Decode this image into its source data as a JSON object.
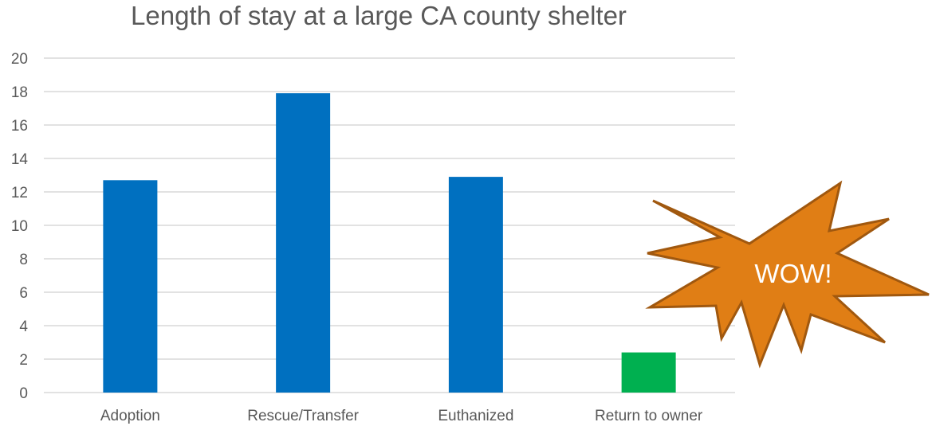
{
  "chart_data": {
    "type": "bar",
    "title": "Length of stay at a large CA county shelter",
    "xlabel": "",
    "ylabel": "",
    "categories": [
      "Adoption",
      "Rescue/Transfer",
      "Euthanized",
      "Return to owner"
    ],
    "values": [
      12.7,
      17.9,
      12.9,
      2.4
    ],
    "bar_colors": [
      "#0070C0",
      "#0070C0",
      "#0070C0",
      "#00B050"
    ],
    "ylim": [
      0,
      20
    ],
    "yticks": [
      "0",
      "2",
      "4",
      "6",
      "8",
      "10",
      "12",
      "14",
      "16",
      "18",
      "20"
    ],
    "grid": true,
    "gridline_color": "#D9D9D9",
    "legend": "none"
  },
  "callout": {
    "text": "WOW!",
    "shape": "explosion-star",
    "fill_color": "#E07E15",
    "stroke_color": "#A0580F"
  }
}
